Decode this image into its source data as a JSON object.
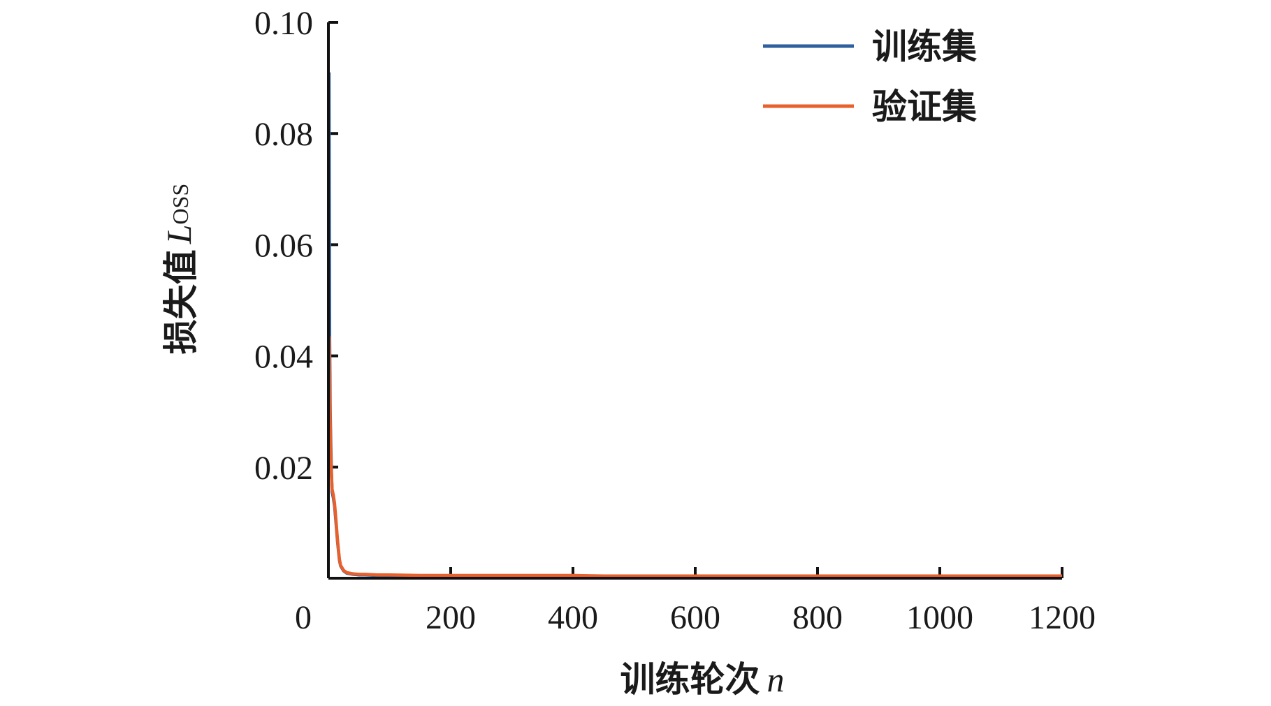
{
  "chart_data": {
    "type": "line",
    "title": "",
    "xlabel": {
      "text": "训练轮次",
      "var": "n"
    },
    "ylabel": {
      "text": "损失值",
      "var": "L",
      "sub": "OSS"
    },
    "xlim": [
      0,
      1200
    ],
    "ylim": [
      0,
      0.1
    ],
    "xticks": [
      0,
      200,
      400,
      600,
      800,
      1000,
      1200
    ],
    "xtick_labels": [
      "0",
      "200",
      "400",
      "600",
      "800",
      "1000",
      "1200"
    ],
    "yticks": [
      0.02,
      0.04,
      0.06,
      0.08,
      0.1
    ],
    "ytick_labels": [
      "0.02",
      "0.04",
      "0.06",
      "0.08",
      "0.10"
    ],
    "grid": false,
    "legend_position": "top-right",
    "series": [
      {
        "name": "训练集",
        "color": "#2e5f9e",
        "x": [
          1,
          2,
          3,
          4,
          5,
          6,
          8,
          10,
          12,
          15,
          18,
          20,
          25,
          30,
          40,
          50,
          60,
          80,
          100,
          150,
          200,
          250,
          300,
          350,
          400,
          450,
          500,
          550,
          600,
          650,
          700,
          750,
          800,
          850,
          900,
          950,
          1000,
          1050,
          1100,
          1150,
          1200
        ],
        "y": [
          0.091,
          0.043,
          0.03,
          0.024,
          0.019,
          0.0155,
          0.0145,
          0.013,
          0.0105,
          0.0065,
          0.0032,
          0.0022,
          0.0013,
          0.0009,
          0.0007,
          0.0006,
          0.0006,
          0.0005,
          0.0005,
          0.0004,
          0.0004,
          0.0004,
          0.0004,
          0.0004,
          0.0004,
          0.0003,
          0.0003,
          0.0003,
          0.0003,
          0.0003,
          0.0003,
          0.0003,
          0.0003,
          0.0003,
          0.0003,
          0.0003,
          0.0003,
          0.0003,
          0.0003,
          0.0003,
          0.0003
        ]
      },
      {
        "name": "验证集",
        "color": "#e8602c",
        "x": [
          1,
          2,
          3,
          4,
          5,
          6,
          8,
          10,
          12,
          15,
          18,
          20,
          25,
          30,
          40,
          50,
          60,
          80,
          100,
          150,
          200,
          250,
          300,
          350,
          400,
          450,
          500,
          550,
          600,
          650,
          700,
          750,
          800,
          850,
          900,
          950,
          1000,
          1050,
          1100,
          1150,
          1200
        ],
        "y": [
          0.0435,
          0.036,
          0.028,
          0.022,
          0.0185,
          0.016,
          0.015,
          0.0135,
          0.011,
          0.0068,
          0.0034,
          0.0023,
          0.0014,
          0.001,
          0.0008,
          0.0007,
          0.0007,
          0.0006,
          0.0006,
          0.0005,
          0.0005,
          0.0005,
          0.0005,
          0.0005,
          0.0005,
          0.0004,
          0.0004,
          0.0004,
          0.0004,
          0.0004,
          0.0004,
          0.0004,
          0.0004,
          0.0004,
          0.0004,
          0.0004,
          0.0004,
          0.0004,
          0.0004,
          0.0004,
          0.0004
        ]
      }
    ]
  }
}
